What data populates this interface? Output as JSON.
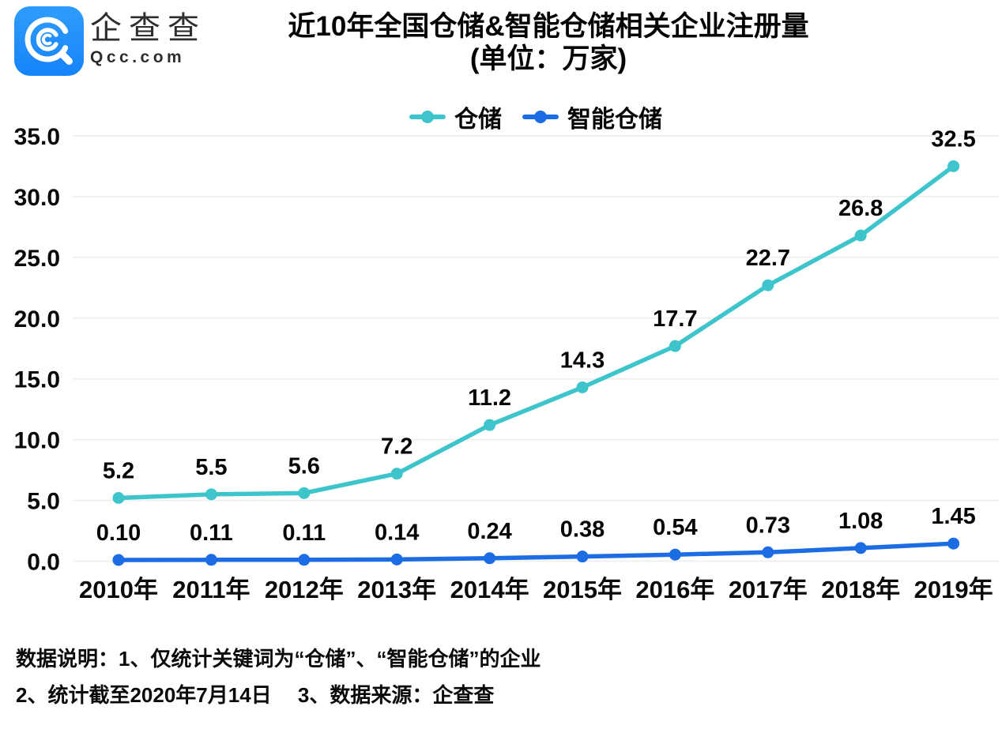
{
  "header": {
    "brand": {
      "name": "企查查",
      "domain": "Qcc.com",
      "logo_color": "#1989fa"
    },
    "title_line1": "近10年全国仓储&智能仓储相关企业注册量",
    "title_line2": "(单位：万家)"
  },
  "chart_data": {
    "type": "line",
    "title": "近10年全国仓储&智能仓储相关企业注册量",
    "subtitle": "(单位：万家)",
    "unit": "万家",
    "categories": [
      "2010年",
      "2011年",
      "2012年",
      "2013年",
      "2014年",
      "2015年",
      "2016年",
      "2017年",
      "2018年",
      "2019年"
    ],
    "series": [
      {
        "id": "warehouse",
        "name": "仓储",
        "color": "#3ec5cc",
        "values": [
          5.2,
          5.5,
          5.6,
          7.2,
          11.2,
          14.3,
          17.7,
          22.7,
          26.8,
          32.5
        ],
        "labels": [
          "5.2",
          "5.5",
          "5.6",
          "7.2",
          "11.2",
          "14.3",
          "17.7",
          "22.7",
          "26.8",
          "32.5"
        ]
      },
      {
        "id": "smart-warehouse",
        "name": "智能仓储",
        "color": "#1c6de4",
        "values": [
          0.1,
          0.11,
          0.11,
          0.14,
          0.24,
          0.38,
          0.54,
          0.73,
          1.08,
          1.45
        ],
        "labels": [
          "0.10",
          "0.11",
          "0.11",
          "0.14",
          "0.24",
          "0.38",
          "0.54",
          "0.73",
          "1.08",
          "1.45"
        ]
      }
    ],
    "yticks": {
      "values": [
        0,
        5,
        10,
        15,
        20,
        25,
        30,
        35
      ],
      "labels": [
        "0.0",
        "5.0",
        "10.0",
        "15.0",
        "20.0",
        "25.0",
        "30.0",
        "35.0"
      ]
    },
    "ylim": [
      0,
      35
    ],
    "xlabel": "",
    "ylabel": "",
    "grid": true,
    "gridline_color": "#f0f0f0",
    "legend_position": "top"
  },
  "footer": {
    "line1": "数据说明：1、仅统计关键词为“仓储”、“智能仓储”的企业",
    "line2": "2、统计截至2020年7月14日　 3、数据来源：企查查"
  }
}
